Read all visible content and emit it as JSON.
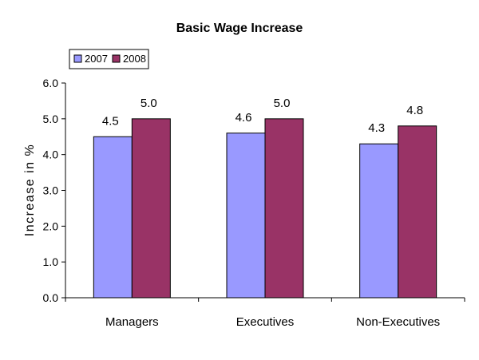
{
  "chart_data": {
    "type": "bar",
    "title": "Basic Wage Increase",
    "xlabel": "",
    "ylabel": "Increase in %",
    "categories": [
      "Managers",
      "Executives",
      "Non-Executives"
    ],
    "series": [
      {
        "name": "2007",
        "values": [
          4.5,
          4.6,
          4.3
        ],
        "labels": [
          "4.5",
          "4.6",
          "4.3"
        ],
        "color": "#9999FF"
      },
      {
        "name": "2008",
        "values": [
          5.0,
          5.0,
          4.8
        ],
        "labels": [
          "5.0",
          "5.0",
          "4.8"
        ],
        "color": "#993366"
      }
    ],
    "ylim": [
      0,
      6
    ],
    "yticks": [
      "0.0",
      "1.0",
      "2.0",
      "3.0",
      "4.0",
      "5.0",
      "6.0"
    ],
    "grid": false,
    "legend_position": "top-left"
  }
}
